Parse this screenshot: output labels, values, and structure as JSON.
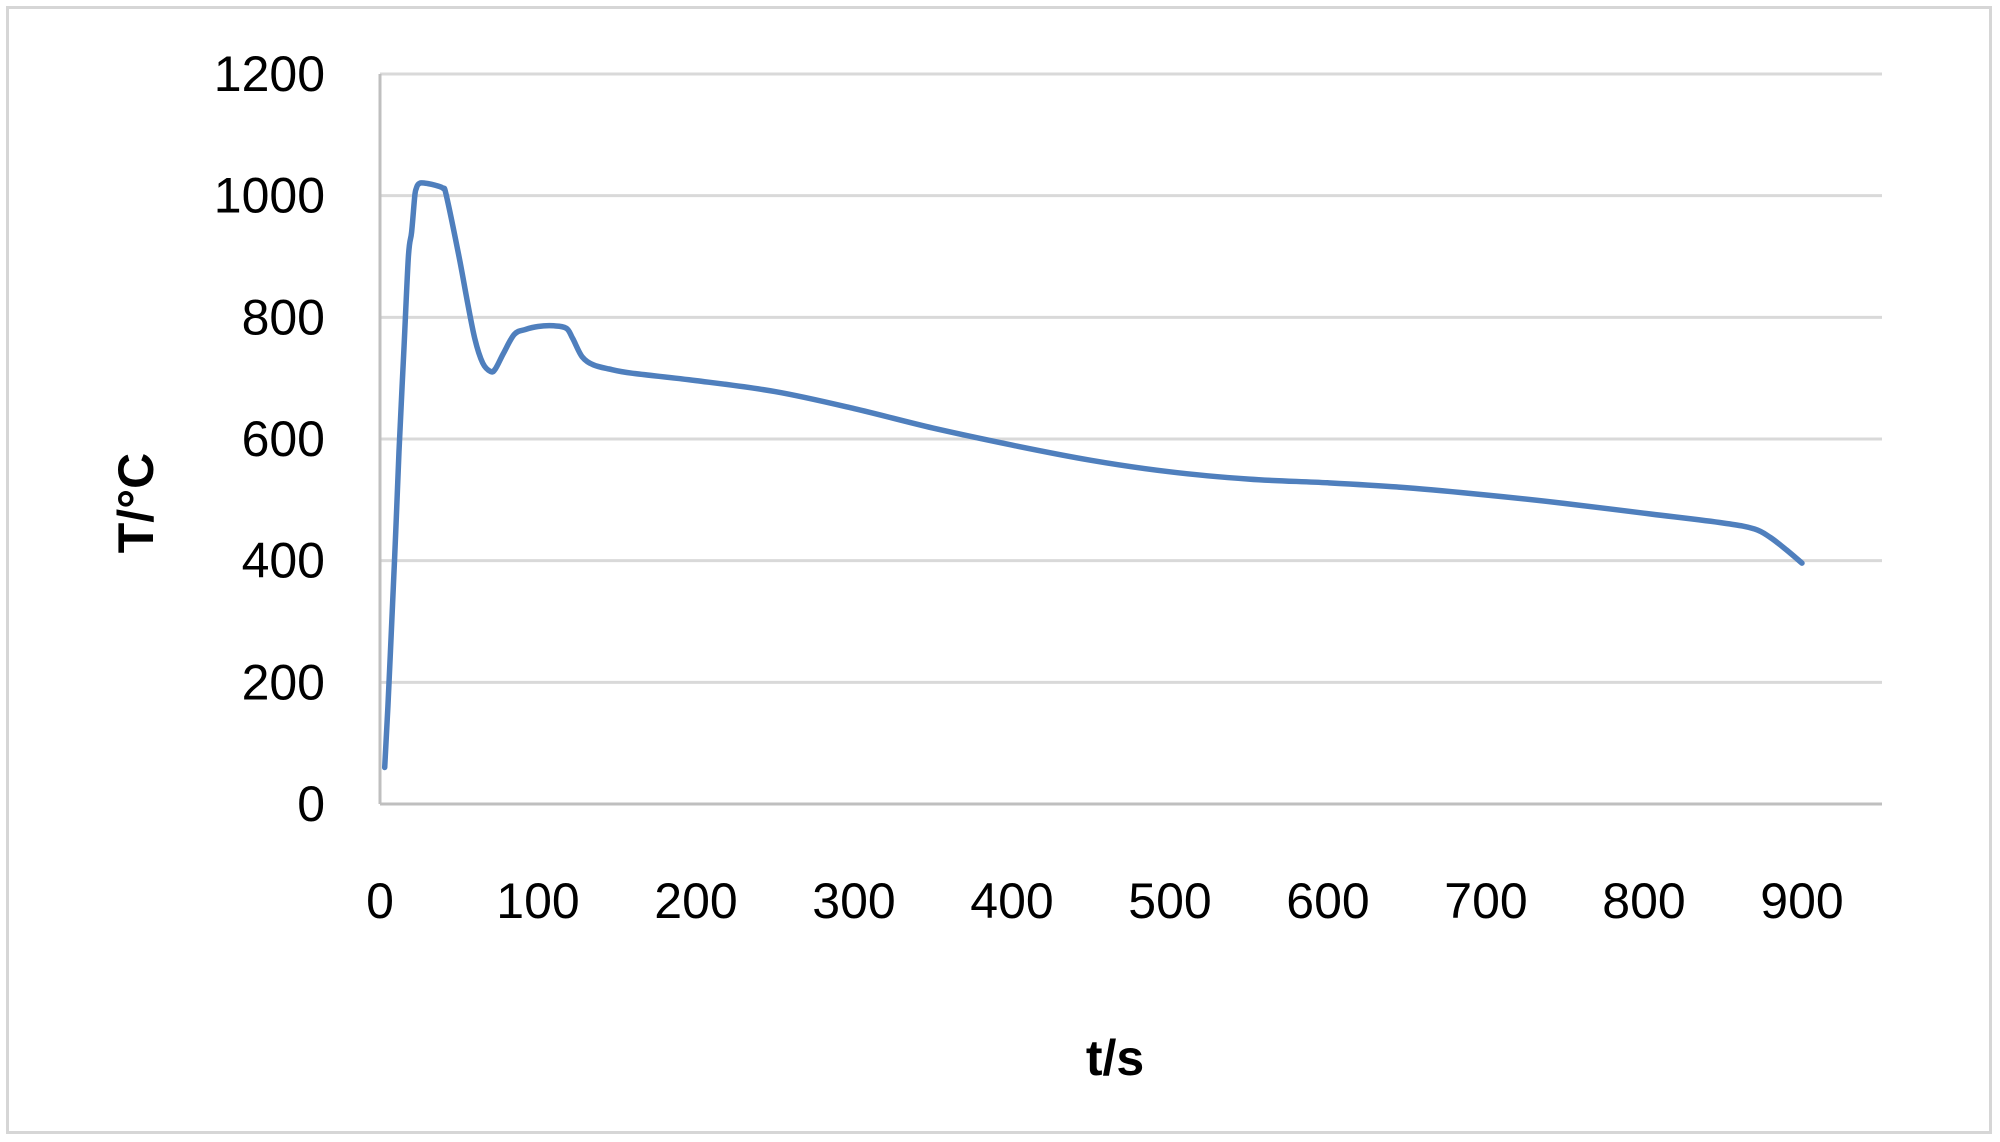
{
  "chart_data": {
    "type": "line",
    "title": "",
    "xlabel": "t/s",
    "ylabel": "T/°C",
    "xlim": [
      0,
      950
    ],
    "ylim": [
      0,
      1200
    ],
    "xticks": [
      0,
      100,
      200,
      300,
      400,
      500,
      600,
      700,
      800,
      900
    ],
    "yticks": [
      0,
      200,
      400,
      600,
      800,
      1000,
      1200
    ],
    "xtick_labels": [
      "0",
      "100",
      "200",
      "300",
      "400",
      "500",
      "600",
      "700",
      "800",
      "900"
    ],
    "ytick_labels": [
      "0",
      "200",
      "400",
      "600",
      "800",
      "1000",
      "1200"
    ],
    "grid": "horizontal",
    "legend": "none",
    "colors": {
      "line": "#4f7fbd",
      "grid": "#d9d9d9",
      "axis": "#bfbfbf"
    },
    "series": [
      {
        "x": [
          3,
          5,
          8,
          10,
          12,
          15,
          18,
          20,
          22,
          23,
          24,
          26,
          30,
          35,
          40,
          42,
          50,
          55,
          60,
          65,
          70,
          73,
          78,
          85,
          92,
          100,
          110,
          118,
          122,
          128,
          135,
          145,
          160,
          200,
          250,
          300,
          350,
          400,
          450,
          500,
          550,
          600,
          650,
          700,
          750,
          800,
          850,
          870,
          880,
          890,
          900
        ],
        "y": [
          60,
          160,
          330,
          450,
          580,
          740,
          900,
          940,
          1000,
          1012,
          1018,
          1021,
          1020,
          1017,
          1012,
          1000,
          900,
          830,
          765,
          725,
          711,
          715,
          740,
          772,
          780,
          785,
          786,
          782,
          765,
          735,
          722,
          715,
          708,
          696,
          678,
          650,
          618,
          590,
          565,
          546,
          534,
          528,
          520,
          508,
          494,
          478,
          462,
          452,
          438,
          418,
          396
        ]
      }
    ]
  }
}
